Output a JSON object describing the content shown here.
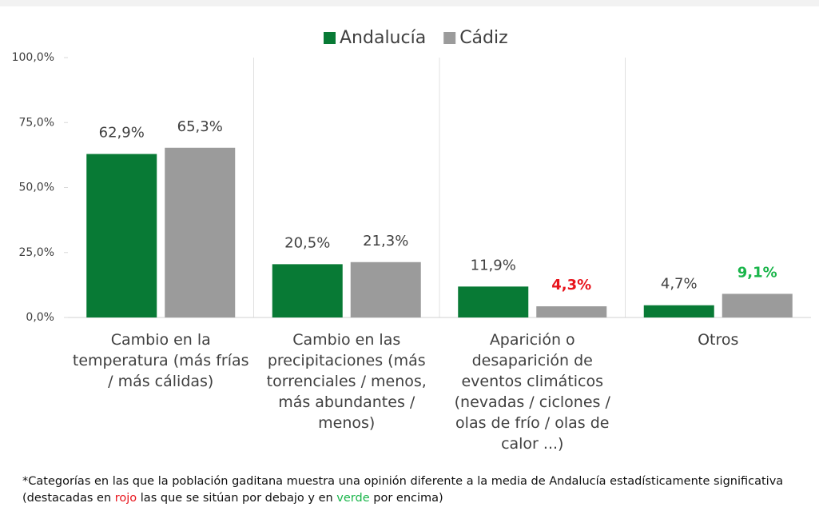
{
  "chart_data": {
    "type": "bar",
    "categories": [
      "Cambio en la temperatura (más frías / más cálidas)",
      "Cambio en las precipitaciones (más torrenciales / menos, más abundantes / menos)",
      "Aparición o desaparición de eventos climáticos (nevadas / ciclones / olas de frío / olas de calor ...)",
      "Otros"
    ],
    "series": [
      {
        "name": "Andalucía",
        "color": "#087a35",
        "values": [
          62.9,
          20.5,
          11.9,
          4.7
        ],
        "value_labels": [
          "62,9%",
          "20,5%",
          "11,9%",
          "4,7%"
        ],
        "value_label_colors": [
          "#404040",
          "#404040",
          "#404040",
          "#404040"
        ]
      },
      {
        "name": "Cádiz",
        "color": "#9b9b9b",
        "values": [
          65.3,
          21.3,
          4.3,
          9.1
        ],
        "value_labels": [
          "65,3%",
          "21,3%",
          "4,3%",
          "9,1%"
        ],
        "value_label_colors": [
          "#404040",
          "#404040",
          "#e8141c",
          "#19b54a"
        ]
      }
    ],
    "ylim": [
      0,
      100
    ],
    "yticks": [
      {
        "value": 0,
        "label": "0,0%"
      },
      {
        "value": 25,
        "label": "25,0%"
      },
      {
        "value": 50,
        "label": "50,0%"
      },
      {
        "value": 75,
        "label": "75,0%"
      },
      {
        "value": 100,
        "label": "100,0%"
      }
    ],
    "legend": "top",
    "category_separators": true
  },
  "footnote": [
    "*Categorías en las que la población gaditana muestra una opinión diferente a la media de Andalucía estadísticamente significativa (destacadas en ",
    "rojo",
    " las que se sitúan por debajo y en ",
    "verde",
    " por encima)"
  ]
}
